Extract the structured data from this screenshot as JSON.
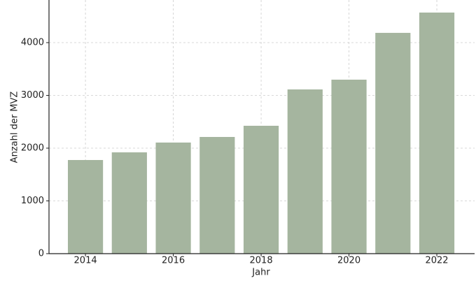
{
  "chart_data": {
    "type": "bar",
    "x_label": "Jahr",
    "y_label": "Anzahl der MVZ",
    "x": [
      2014,
      2015,
      2016,
      2017,
      2018,
      2019,
      2020,
      2021,
      2022
    ],
    "values": [
      1775,
      1920,
      2106,
      2212,
      2424,
      3113,
      3298,
      4185,
      4570
    ],
    "color": "#a5b59f",
    "xlim": [
      2013.17,
      2022.86
    ],
    "xticks": [
      2014,
      2016,
      2018,
      2020,
      2022
    ],
    "ylim": [
      0,
      4808
    ],
    "yticks": [
      0,
      1000,
      2000,
      3000,
      4000
    ],
    "grid": true
  }
}
